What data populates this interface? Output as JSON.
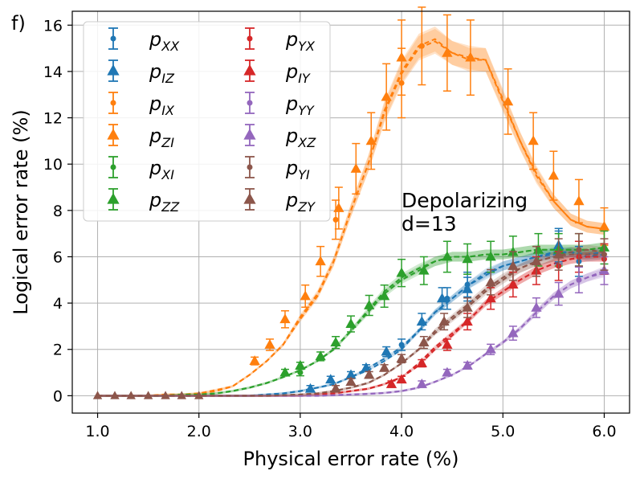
{
  "chart_data": {
    "type": "line",
    "panel_label": "f)",
    "xlabel": "Physical error rate (%)",
    "ylabel": "Logical error rate (%)",
    "xlim": [
      0.75,
      6.25
    ],
    "ylim": [
      -0.75,
      16.6
    ],
    "xticks": [
      1.0,
      2.0,
      3.0,
      4.0,
      5.0,
      6.0
    ],
    "xtick_labels": [
      "1.0",
      "2.0",
      "3.0",
      "4.0",
      "5.0",
      "6.0"
    ],
    "yticks": [
      0,
      2,
      4,
      6,
      8,
      10,
      12,
      14,
      16
    ],
    "ytick_labels": [
      "0",
      "2",
      "4",
      "6",
      "8",
      "10",
      "12",
      "14",
      "16"
    ],
    "grid": true,
    "annotation": [
      "Depolarizing",
      "d=13"
    ],
    "legend": {
      "placement": "top-left",
      "columns": 2
    },
    "x": [
      1.0,
      1.17,
      1.33,
      1.5,
      1.67,
      1.83,
      2.0,
      2.17,
      2.33,
      2.5,
      2.67,
      2.83,
      3.0,
      3.17,
      3.33,
      3.5,
      3.67,
      3.83,
      4.0,
      4.17,
      4.33,
      4.5,
      4.67,
      4.83,
      5.0,
      5.17,
      5.33,
      5.5,
      5.67,
      5.83,
      6.0
    ],
    "series": [
      {
        "label_base": "p",
        "label_sub": "XX",
        "marker": "circle",
        "color": "#1f77b4",
        "values": [
          0,
          0,
          0,
          0,
          0,
          0,
          0,
          0,
          0,
          0,
          0.05,
          0.1,
          0.2,
          0.35,
          0.5,
          0.8,
          1.1,
          1.5,
          2.0,
          2.8,
          3.6,
          4.2,
          4.8,
          5.3,
          5.6,
          5.8,
          6.0,
          6.1,
          6.2,
          6.0,
          6.1
        ],
        "points": [
          {
            "x": 4.0,
            "y": 2.2
          },
          {
            "x": 4.45,
            "y": 4.2
          },
          {
            "x": 4.65,
            "y": 4.8
          },
          {
            "x": 5.55,
            "y": 6.4
          },
          {
            "x": 5.75,
            "y": 5.8
          }
        ]
      },
      {
        "label_base": "p",
        "label_sub": "IZ",
        "marker": "triangle",
        "color": "#1f77b4",
        "values": [
          0,
          0,
          0,
          0,
          0,
          0,
          0,
          0,
          0,
          0,
          0.05,
          0.1,
          0.2,
          0.35,
          0.5,
          0.8,
          1.2,
          1.6,
          2.1,
          2.8,
          3.6,
          4.2,
          4.8,
          5.2,
          5.6,
          5.8,
          6.0,
          6.2,
          6.2,
          6.1,
          6.2
        ],
        "points": [
          {
            "x": 3.1,
            "y": 0.3
          },
          {
            "x": 3.3,
            "y": 0.7
          },
          {
            "x": 3.5,
            "y": 0.9
          },
          {
            "x": 3.65,
            "y": 1.2
          },
          {
            "x": 3.85,
            "y": 1.9
          },
          {
            "x": 4.2,
            "y": 3.2
          },
          {
            "x": 4.4,
            "y": 4.2
          },
          {
            "x": 4.65,
            "y": 4.6
          },
          {
            "x": 5.55,
            "y": 6.5
          }
        ]
      },
      {
        "label_base": "p",
        "label_sub": "IX",
        "marker": "circle",
        "color": "#ff7f0e",
        "values": [
          0,
          0,
          0,
          0,
          0.05,
          0.05,
          0.1,
          0.2,
          0.4,
          0.9,
          1.5,
          2.2,
          3.4,
          4.4,
          5.8,
          8.0,
          10.0,
          12.2,
          13.9,
          15.0,
          15.3,
          14.8,
          14.5,
          14.5,
          12.7,
          11.0,
          9.6,
          8.4,
          7.6,
          7.3,
          7.2
        ],
        "points": [
          {
            "x": 3.35,
            "y": 7.6
          },
          {
            "x": 4.0,
            "y": 13.5
          },
          {
            "x": 4.2,
            "y": 15.1
          }
        ]
      },
      {
        "label_base": "p",
        "label_sub": "ZI",
        "marker": "triangle",
        "color": "#ff7f0e",
        "values": [
          0,
          0,
          0,
          0,
          0.05,
          0.05,
          0.1,
          0.25,
          0.4,
          0.9,
          1.5,
          2.2,
          3.3,
          4.3,
          5.8,
          8.0,
          10.0,
          12.3,
          14.0,
          15.1,
          15.4,
          14.8,
          14.6,
          14.5,
          12.8,
          11.0,
          9.5,
          8.4,
          7.6,
          7.3,
          7.2
        ],
        "points": [
          {
            "x": 2.55,
            "y": 1.5
          },
          {
            "x": 2.7,
            "y": 2.2
          },
          {
            "x": 2.85,
            "y": 3.3
          },
          {
            "x": 3.05,
            "y": 4.3
          },
          {
            "x": 3.2,
            "y": 5.8
          },
          {
            "x": 3.38,
            "y": 8.1
          },
          {
            "x": 3.55,
            "y": 9.8
          },
          {
            "x": 3.7,
            "y": 11.0
          },
          {
            "x": 3.85,
            "y": 12.9
          },
          {
            "x": 4.0,
            "y": 14.6
          },
          {
            "x": 4.45,
            "y": 14.8
          },
          {
            "x": 4.68,
            "y": 14.6
          },
          {
            "x": 5.05,
            "y": 12.7
          },
          {
            "x": 5.3,
            "y": 11.0
          },
          {
            "x": 5.5,
            "y": 9.5
          },
          {
            "x": 5.75,
            "y": 8.4
          },
          {
            "x": 6.0,
            "y": 7.3
          }
        ]
      },
      {
        "label_base": "p",
        "label_sub": "XI",
        "marker": "circle",
        "color": "#2ca02c",
        "values": [
          0,
          0,
          0,
          0,
          0,
          0.05,
          0.05,
          0.1,
          0.2,
          0.35,
          0.55,
          0.8,
          1.1,
          1.5,
          2.0,
          2.8,
          3.6,
          4.4,
          5.0,
          5.4,
          5.8,
          6.0,
          6.0,
          6.1,
          6.1,
          6.2,
          6.3,
          6.3,
          6.3,
          6.3,
          6.4
        ],
        "points": [
          {
            "x": 3.0,
            "y": 1.0
          },
          {
            "x": 5.75,
            "y": 6.3
          }
        ]
      },
      {
        "label_base": "p",
        "label_sub": "ZZ",
        "marker": "triangle",
        "color": "#2ca02c",
        "values": [
          0,
          0,
          0,
          0,
          0,
          0.05,
          0.05,
          0.1,
          0.2,
          0.35,
          0.55,
          0.8,
          1.1,
          1.5,
          2.0,
          2.8,
          3.7,
          4.5,
          5.1,
          5.5,
          5.8,
          6.0,
          6.0,
          6.1,
          6.1,
          6.2,
          6.3,
          6.3,
          6.3,
          6.3,
          6.4
        ],
        "points": [
          {
            "x": 2.85,
            "y": 1.0
          },
          {
            "x": 3.0,
            "y": 1.3
          },
          {
            "x": 3.2,
            "y": 1.7
          },
          {
            "x": 3.35,
            "y": 2.3
          },
          {
            "x": 3.5,
            "y": 3.1
          },
          {
            "x": 3.68,
            "y": 3.9
          },
          {
            "x": 3.83,
            "y": 4.3
          },
          {
            "x": 4.0,
            "y": 5.3
          },
          {
            "x": 4.22,
            "y": 5.4
          },
          {
            "x": 4.45,
            "y": 6.0
          },
          {
            "x": 4.65,
            "y": 5.9
          },
          {
            "x": 4.88,
            "y": 6.0
          },
          {
            "x": 5.1,
            "y": 6.2
          },
          {
            "x": 5.35,
            "y": 6.3
          },
          {
            "x": 5.55,
            "y": 6.3
          },
          {
            "x": 6.0,
            "y": 6.4
          }
        ]
      },
      {
        "label_base": "p",
        "label_sub": "YX",
        "marker": "circle",
        "color": "#d62728",
        "values": [
          0,
          0,
          0,
          0,
          0,
          0,
          0,
          0,
          0,
          0,
          0,
          0,
          0,
          0.05,
          0.1,
          0.2,
          0.3,
          0.5,
          0.8,
          1.3,
          2.0,
          2.6,
          3.3,
          4.0,
          4.5,
          5.0,
          5.4,
          5.7,
          5.9,
          6.0,
          6.0
        ],
        "points": [
          {
            "x": 5.55,
            "y": 5.6
          },
          {
            "x": 5.75,
            "y": 6.0
          },
          {
            "x": 6.0,
            "y": 5.9
          }
        ]
      },
      {
        "label_base": "p",
        "label_sub": "IY",
        "marker": "triangle",
        "color": "#d62728",
        "values": [
          0,
          0,
          0,
          0,
          0,
          0,
          0,
          0,
          0,
          0,
          0,
          0,
          0,
          0.05,
          0.1,
          0.2,
          0.3,
          0.5,
          0.8,
          1.4,
          2.1,
          2.7,
          3.3,
          4.0,
          4.5,
          5.0,
          5.4,
          5.7,
          5.9,
          6.0,
          6.0
        ],
        "points": [
          {
            "x": 3.9,
            "y": 0.5
          },
          {
            "x": 4.0,
            "y": 0.7
          },
          {
            "x": 4.2,
            "y": 1.4
          },
          {
            "x": 4.45,
            "y": 2.2
          },
          {
            "x": 4.65,
            "y": 3.2
          },
          {
            "x": 4.88,
            "y": 4.2
          },
          {
            "x": 5.1,
            "y": 4.8
          },
          {
            "x": 5.33,
            "y": 5.4
          }
        ]
      },
      {
        "label_base": "p",
        "label_sub": "YY",
        "marker": "circle",
        "color": "#9467bd",
        "values": [
          0,
          0,
          0,
          0,
          0,
          0,
          0,
          0,
          0,
          0,
          0,
          0,
          0,
          0,
          0.02,
          0.05,
          0.08,
          0.12,
          0.2,
          0.35,
          0.6,
          0.9,
          1.3,
          1.8,
          2.3,
          2.9,
          3.6,
          4.3,
          4.8,
          5.1,
          5.3
        ],
        "points": [
          {
            "x": 5.75,
            "y": 5.0
          }
        ]
      },
      {
        "label_base": "p",
        "label_sub": "XZ",
        "marker": "triangle",
        "color": "#9467bd",
        "values": [
          0,
          0,
          0,
          0,
          0,
          0,
          0,
          0,
          0,
          0,
          0,
          0,
          0,
          0,
          0.02,
          0.05,
          0.08,
          0.12,
          0.2,
          0.35,
          0.6,
          0.9,
          1.3,
          1.8,
          2.3,
          2.9,
          3.6,
          4.3,
          4.8,
          5.1,
          5.4
        ],
        "points": [
          {
            "x": 4.2,
            "y": 0.5
          },
          {
            "x": 4.45,
            "y": 1.0
          },
          {
            "x": 4.65,
            "y": 1.3
          },
          {
            "x": 4.88,
            "y": 2.0
          },
          {
            "x": 5.1,
            "y": 2.7
          },
          {
            "x": 5.33,
            "y": 3.8
          },
          {
            "x": 5.55,
            "y": 4.4
          },
          {
            "x": 6.0,
            "y": 5.4
          }
        ]
      },
      {
        "label_base": "p",
        "label_sub": "YI",
        "marker": "circle",
        "color": "#8c564b",
        "values": [
          0,
          0,
          0,
          0,
          0,
          0,
          0,
          0,
          0,
          0,
          0,
          0.02,
          0.05,
          0.1,
          0.2,
          0.35,
          0.55,
          0.9,
          1.4,
          2.0,
          2.7,
          3.3,
          3.9,
          4.5,
          5.0,
          5.5,
          5.8,
          6.0,
          6.1,
          6.1,
          6.1
        ],
        "points": [
          {
            "x": 5.75,
            "y": 6.3
          },
          {
            "x": 6.0,
            "y": 6.1
          }
        ]
      },
      {
        "label_base": "p",
        "label_sub": "ZY",
        "marker": "triangle",
        "color": "#8c564b",
        "values": [
          0,
          0,
          0,
          0,
          0,
          0,
          0,
          0,
          0,
          0,
          0,
          0.02,
          0.05,
          0.1,
          0.2,
          0.35,
          0.55,
          0.9,
          1.4,
          2.0,
          2.8,
          3.4,
          4.0,
          4.6,
          5.1,
          5.5,
          5.8,
          6.0,
          6.2,
          6.3,
          6.2
        ],
        "points": [
          {
            "x": 3.35,
            "y": 0.3
          },
          {
            "x": 3.5,
            "y": 0.6
          },
          {
            "x": 3.68,
            "y": 0.9
          },
          {
            "x": 3.83,
            "y": 1.2
          },
          {
            "x": 4.0,
            "y": 1.6
          },
          {
            "x": 4.22,
            "y": 2.3
          },
          {
            "x": 4.42,
            "y": 3.2
          },
          {
            "x": 4.65,
            "y": 3.8
          },
          {
            "x": 4.88,
            "y": 4.9
          },
          {
            "x": 5.1,
            "y": 5.6
          },
          {
            "x": 5.33,
            "y": 5.8
          },
          {
            "x": 5.55,
            "y": 6.1
          }
        ]
      }
    ]
  }
}
